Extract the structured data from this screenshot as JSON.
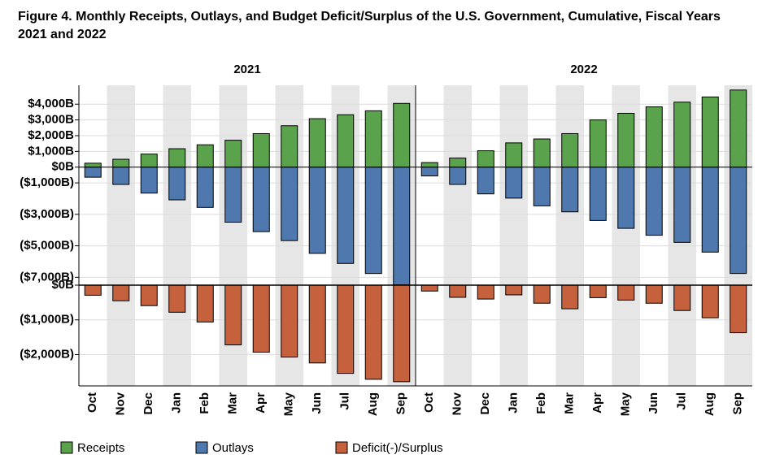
{
  "chart_data": {
    "type": "bar",
    "title": "Figure 4. Monthly Receipts, Outlays, and Budget Deficit/Surplus of the U.S. Government, Cumulative, Fiscal Years 2021 and 2022",
    "panels": [
      "2021",
      "2022"
    ],
    "categories": [
      "Oct",
      "Nov",
      "Dec",
      "Jan",
      "Feb",
      "Mar",
      "Apr",
      "May",
      "Jun",
      "Jul",
      "Aug",
      "Sep"
    ],
    "ylim": [
      -7500,
      5200
    ],
    "yticks": [
      {
        "value": 4000,
        "label": "$4,000B"
      },
      {
        "value": 3000,
        "label": "$3,000B"
      },
      {
        "value": 2000,
        "label": "$2,000B"
      },
      {
        "value": 1000,
        "label": "$1,000B"
      },
      {
        "value": 0,
        "label": "$0B"
      },
      {
        "value": -1000,
        "label": "($1,000B)"
      },
      {
        "value": -3000,
        "label": "($3,000B)"
      },
      {
        "value": -5000,
        "label": "($5,000B)"
      },
      {
        "value": -7000,
        "label": "($7,000B)"
      }
    ],
    "y2lim": [
      -2900,
      0
    ],
    "y2ticks": [
      {
        "value": 0,
        "label": "$0B"
      },
      {
        "value": -1000,
        "label": "($1,000B)"
      },
      {
        "value": -2000,
        "label": "($2,000B)"
      }
    ],
    "grid": true,
    "series": [
      {
        "name": "Receipts",
        "color": "#5aa24b",
        "values": [
          [
            250,
            500,
            830,
            1170,
            1420,
            1710,
            2130,
            2630,
            3080,
            3330,
            3580,
            4050
          ],
          [
            290,
            580,
            1040,
            1540,
            1790,
            2130,
            3000,
            3420,
            3830,
            4130,
            4460,
            4900
          ]
        ]
      },
      {
        "name": "Outlays",
        "color": "#4f78ae",
        "values": [
          [
            -640,
            -1100,
            -1650,
            -2080,
            -2560,
            -3500,
            -4100,
            -4670,
            -5480,
            -6120,
            -6760,
            -7480
          ],
          [
            -560,
            -1100,
            -1700,
            -1970,
            -2460,
            -2840,
            -3390,
            -3890,
            -4330,
            -4780,
            -5400,
            -6760
          ]
        ]
      },
      {
        "name": "Deficit(-)/Surplus",
        "color": "#c6613d",
        "axis": "y2",
        "values": [
          [
            -290,
            -450,
            -590,
            -780,
            -1060,
            -1720,
            -1930,
            -2070,
            -2240,
            -2540,
            -2710,
            -2780
          ],
          [
            -170,
            -350,
            -400,
            -280,
            -520,
            -680,
            -360,
            -430,
            -520,
            -730,
            -940,
            -1370
          ]
        ]
      }
    ]
  }
}
